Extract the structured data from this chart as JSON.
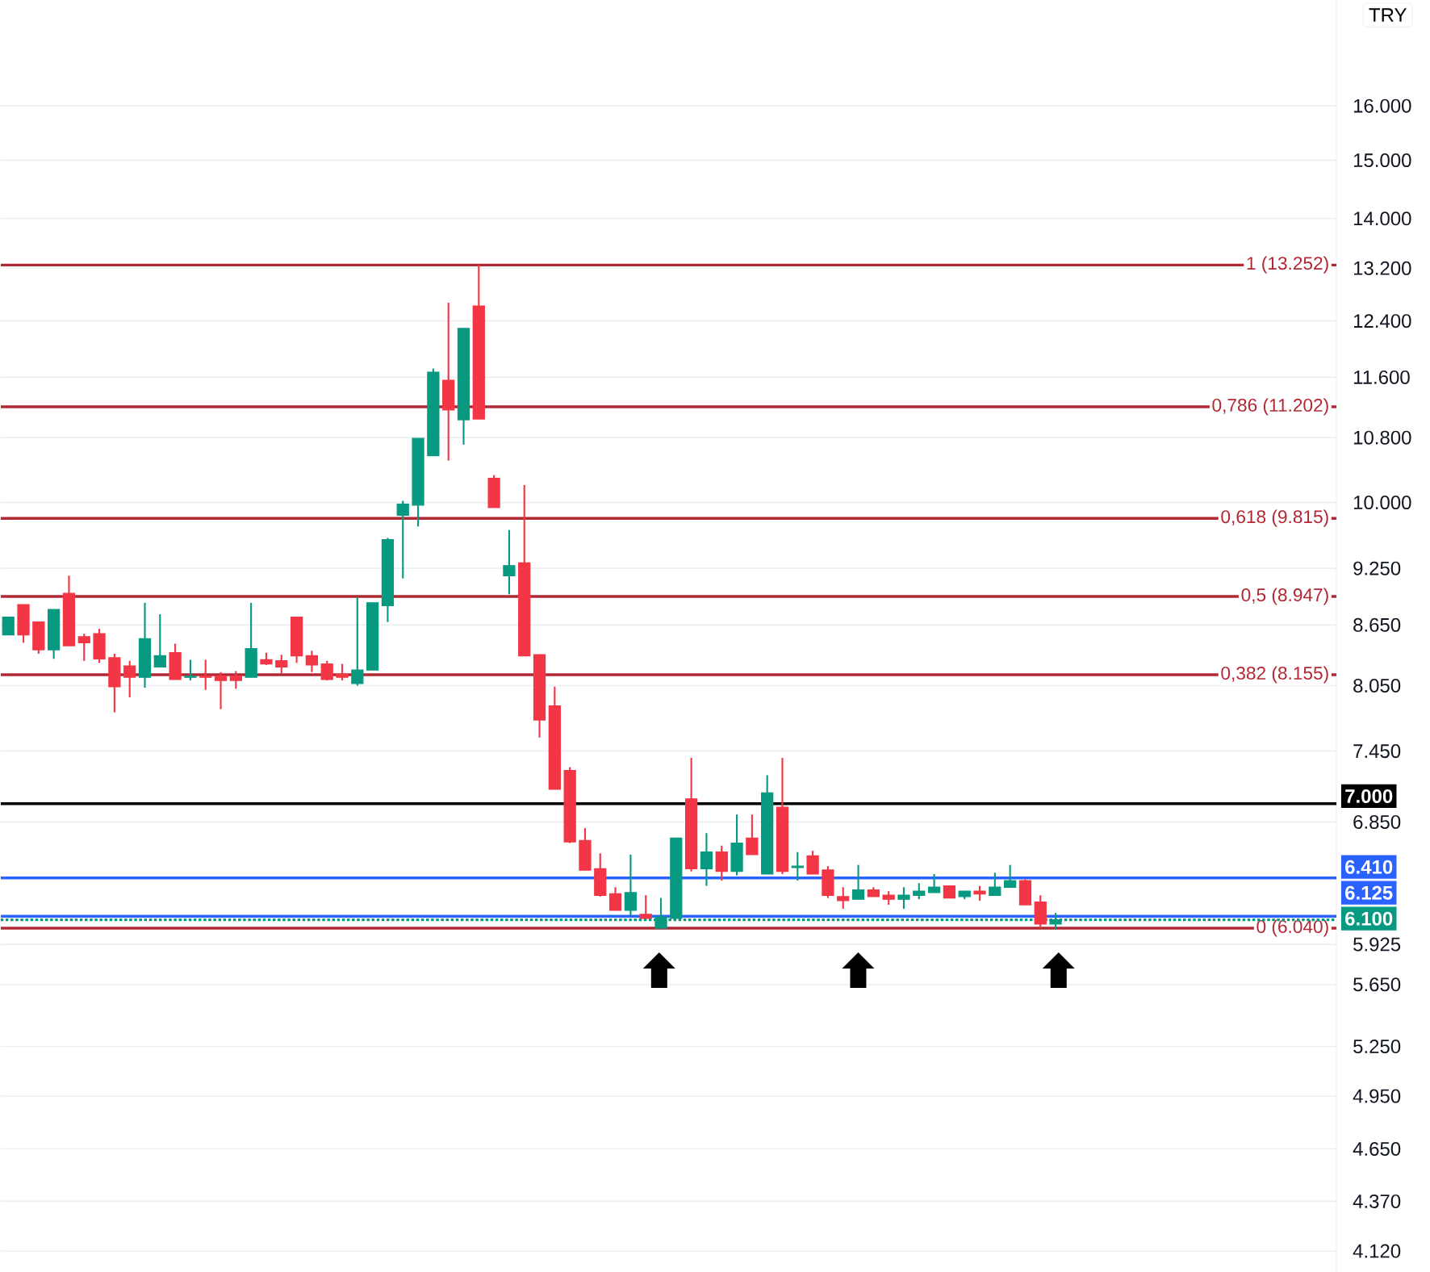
{
  "chart_data": {
    "type": "candlestick",
    "categories": [
      null,
      null,
      null,
      null,
      null,
      null,
      null,
      null,
      null,
      null,
      null,
      null,
      null,
      null,
      null,
      null,
      null,
      null,
      null,
      null,
      null,
      null,
      null,
      null,
      null,
      null,
      null,
      null,
      null,
      null,
      null,
      null,
      null,
      null,
      null,
      null,
      null,
      null,
      null,
      null,
      null,
      null,
      null,
      null,
      null,
      null,
      null,
      null,
      null,
      null,
      null,
      null,
      null,
      null,
      null,
      null,
      null,
      null,
      null,
      null,
      null,
      null,
      null,
      null,
      null,
      null,
      null,
      null,
      null,
      null,
      null,
      null,
      null,
      null,
      null,
      null,
      null,
      null,
      null,
      null,
      null,
      null,
      null,
      null,
      null,
      null,
      null,
      null
    ],
    "ohlc": [
      [
        8550,
        8730,
        8550,
        8730
      ],
      [
        8860,
        8860,
        8470,
        8550
      ],
      [
        8680,
        8680,
        8360,
        8400
      ],
      [
        8400,
        8810,
        8310,
        8810
      ],
      [
        8980,
        9170,
        8440,
        8440
      ],
      [
        8530,
        8560,
        8290,
        8470
      ],
      [
        8560,
        8610,
        8270,
        8310
      ],
      [
        8320,
        8360,
        7800,
        8040
      ],
      [
        8240,
        8290,
        7940,
        8130
      ],
      [
        8130,
        8880,
        8030,
        8510
      ],
      [
        8230,
        8760,
        8230,
        8340
      ],
      [
        8370,
        8460,
        8110,
        8110
      ],
      [
        8130,
        8300,
        8100,
        8140
      ],
      [
        8140,
        8300,
        8010,
        8130
      ],
      [
        8140,
        8180,
        7830,
        8100
      ],
      [
        8140,
        8190,
        8020,
        8100
      ],
      [
        8130,
        8880,
        8130,
        8410
      ],
      [
        8300,
        8370,
        8250,
        8260
      ],
      [
        8290,
        8350,
        8170,
        8230
      ],
      [
        8730,
        8730,
        8270,
        8340
      ],
      [
        8340,
        8390,
        8180,
        8250
      ],
      [
        8260,
        8290,
        8100,
        8110
      ],
      [
        8160,
        8260,
        8100,
        8130
      ],
      [
        8070,
        8940,
        8050,
        8200
      ],
      [
        8200,
        8880,
        8200,
        8880
      ],
      [
        8850,
        9590,
        8680,
        9570
      ],
      [
        9850,
        10020,
        9140,
        9980
      ],
      [
        9970,
        10790,
        9720,
        10790
      ],
      [
        10570,
        11720,
        10570,
        11670
      ],
      [
        11560,
        12670,
        10510,
        11160
      ],
      [
        11030,
        12290,
        10710,
        12290
      ],
      [
        12620,
        13250,
        11040,
        11040
      ],
      [
        10290,
        10330,
        9940,
        9940
      ],
      [
        9170,
        9680,
        8970,
        9280
      ],
      [
        9310,
        10210,
        8340,
        8340
      ],
      [
        8350,
        8350,
        7570,
        7730
      ],
      [
        7860,
        8040,
        7120,
        7120
      ],
      [
        7280,
        7310,
        6680,
        6690
      ],
      [
        6700,
        6800,
        6470,
        6470
      ],
      [
        6480,
        6600,
        6270,
        6280
      ],
      [
        6290,
        6340,
        6170,
        6170
      ],
      [
        6170,
        6590,
        6130,
        6300
      ],
      [
        6140,
        6280,
        6110,
        6110
      ],
      [
        6040,
        6260,
        6040,
        6120
      ],
      [
        6110,
        6720,
        6110,
        6720
      ],
      [
        7040,
        7390,
        6460,
        6480
      ],
      [
        6480,
        6760,
        6350,
        6610
      ],
      [
        6610,
        6660,
        6390,
        6460
      ],
      [
        6460,
        6910,
        6430,
        6680
      ],
      [
        6720,
        6910,
        6590,
        6590
      ],
      [
        6440,
        7240,
        6440,
        7090
      ],
      [
        6970,
        7390,
        6440,
        6460
      ],
      [
        6490,
        6610,
        6390,
        6500
      ],
      [
        6580,
        6620,
        6440,
        6440
      ],
      [
        6470,
        6500,
        6260,
        6280
      ],
      [
        6270,
        6340,
        6180,
        6240
      ],
      [
        6250,
        6510,
        6250,
        6320
      ],
      [
        6320,
        6340,
        6270,
        6270
      ],
      [
        6280,
        6310,
        6210,
        6250
      ],
      [
        6250,
        6340,
        6180,
        6280
      ],
      [
        6280,
        6370,
        6250,
        6310
      ],
      [
        6300,
        6440,
        6300,
        6340
      ],
      [
        6350,
        6350,
        6260,
        6260
      ],
      [
        6270,
        6310,
        6250,
        6310
      ],
      [
        6310,
        6350,
        6240,
        6290
      ],
      [
        6280,
        6450,
        6280,
        6340
      ],
      [
        6340,
        6510,
        6340,
        6390
      ],
      [
        6390,
        6400,
        6210,
        6210
      ],
      [
        6230,
        6280,
        6040,
        6070
      ],
      [
        6070,
        6150,
        6030,
        6100
      ],
      null,
      null,
      null,
      null,
      null,
      null,
      null,
      null,
      null,
      null,
      null,
      null,
      null,
      null,
      null,
      null,
      null,
      null
    ],
    "colors": [
      "#089981",
      "#f23645",
      "#f23645",
      "#089981",
      "#f23645",
      "#f23645",
      "#f23645",
      "#f23645",
      "#f23645",
      "#089981",
      "#089981",
      "#f23645",
      "#089981",
      "#f23645",
      "#f23645",
      "#f23645",
      "#089981",
      "#f23645",
      "#f23645",
      "#f23645",
      "#f23645",
      "#f23645",
      "#f23645",
      "#089981",
      "#089981",
      "#089981",
      "#089981",
      "#089981",
      "#089981",
      "#f23645",
      "#089981",
      "#f23645",
      "#f23645",
      "#089981",
      "#f23645",
      "#f23645",
      "#f23645",
      "#f23645",
      "#f23645",
      "#f23645",
      "#f23645",
      "#089981",
      "#f23645",
      "#089981",
      "#089981",
      "#f23645",
      "#089981",
      "#f23645",
      "#089981",
      "#f23645",
      "#089981",
      "#f23645",
      "#089981",
      "#f23645",
      "#f23645",
      "#f23645",
      "#089981",
      "#f23645",
      "#f23645",
      "#089981",
      "#089981",
      "#089981",
      "#f23645",
      "#089981",
      "#f23645",
      "#089981",
      "#089981",
      "#f23645",
      "#f23645",
      "#089981",
      null,
      null,
      null,
      null,
      null,
      null,
      null,
      null,
      null,
      null,
      null,
      null,
      null,
      null,
      null,
      null,
      null,
      null
    ],
    "ylim": [
      4020,
      18130
    ],
    "log": "y",
    "yticks": [
      {
        "value": 4120,
        "label": "4.120"
      },
      {
        "value": 4370,
        "label": "4.370"
      },
      {
        "value": 4650,
        "label": "4.650"
      },
      {
        "value": 4950,
        "label": "4.950"
      },
      {
        "value": 5250,
        "label": "5.250"
      },
      {
        "value": 5650,
        "label": "5.650"
      },
      {
        "value": 5925,
        "label": "5.925"
      },
      {
        "value": 6850,
        "label": "6.850"
      },
      {
        "value": 7450,
        "label": "7.450"
      },
      {
        "value": 8050,
        "label": "8.050"
      },
      {
        "value": 8650,
        "label": "8.650"
      },
      {
        "value": 9250,
        "label": "9.250"
      },
      {
        "value": 10000,
        "label": "10.000"
      },
      {
        "value": 10800,
        "label": "10.800"
      },
      {
        "value": 11600,
        "label": "11.600"
      },
      {
        "value": 12400,
        "label": "12.400"
      },
      {
        "value": 13200,
        "label": "13.200"
      },
      {
        "value": 14000,
        "label": "14.000"
      },
      {
        "value": 15000,
        "label": "15.000"
      },
      {
        "value": 16000,
        "label": "16.000"
      }
    ],
    "grid": "y",
    "tick_labels": "y",
    "ref_lines": [
      {
        "axis": "y",
        "value": 13252,
        "label": "1 (13.252)",
        "color": "#b22833"
      },
      {
        "axis": "y",
        "value": 11202,
        "label": "0,786 (11.202)",
        "color": "#b22833"
      },
      {
        "axis": "y",
        "value": 9815,
        "label": "0,618 (9.815)",
        "color": "#b22833"
      },
      {
        "axis": "y",
        "value": 8947,
        "label": "0,5 (8.947)",
        "color": "#b22833"
      },
      {
        "axis": "y",
        "value": 8155,
        "label": "0,382 (8.155)",
        "color": "#b22833"
      },
      {
        "axis": "y",
        "value": 6040,
        "label": "0 (6.040)",
        "color": "#b22833"
      },
      {
        "axis": "y",
        "value": 7000,
        "label": "7.000",
        "color": "#000000"
      },
      {
        "axis": "y",
        "value": 6410,
        "label": "6.410",
        "color": "#2962ff"
      },
      {
        "axis": "y",
        "value": 6125,
        "label": "6.125",
        "color": "#2962ff"
      },
      {
        "axis": "y",
        "value": 6100,
        "label": "6.100",
        "color": "#089981",
        "line_style": "dotted"
      }
    ],
    "annotations": [
      "TRY"
    ]
  }
}
